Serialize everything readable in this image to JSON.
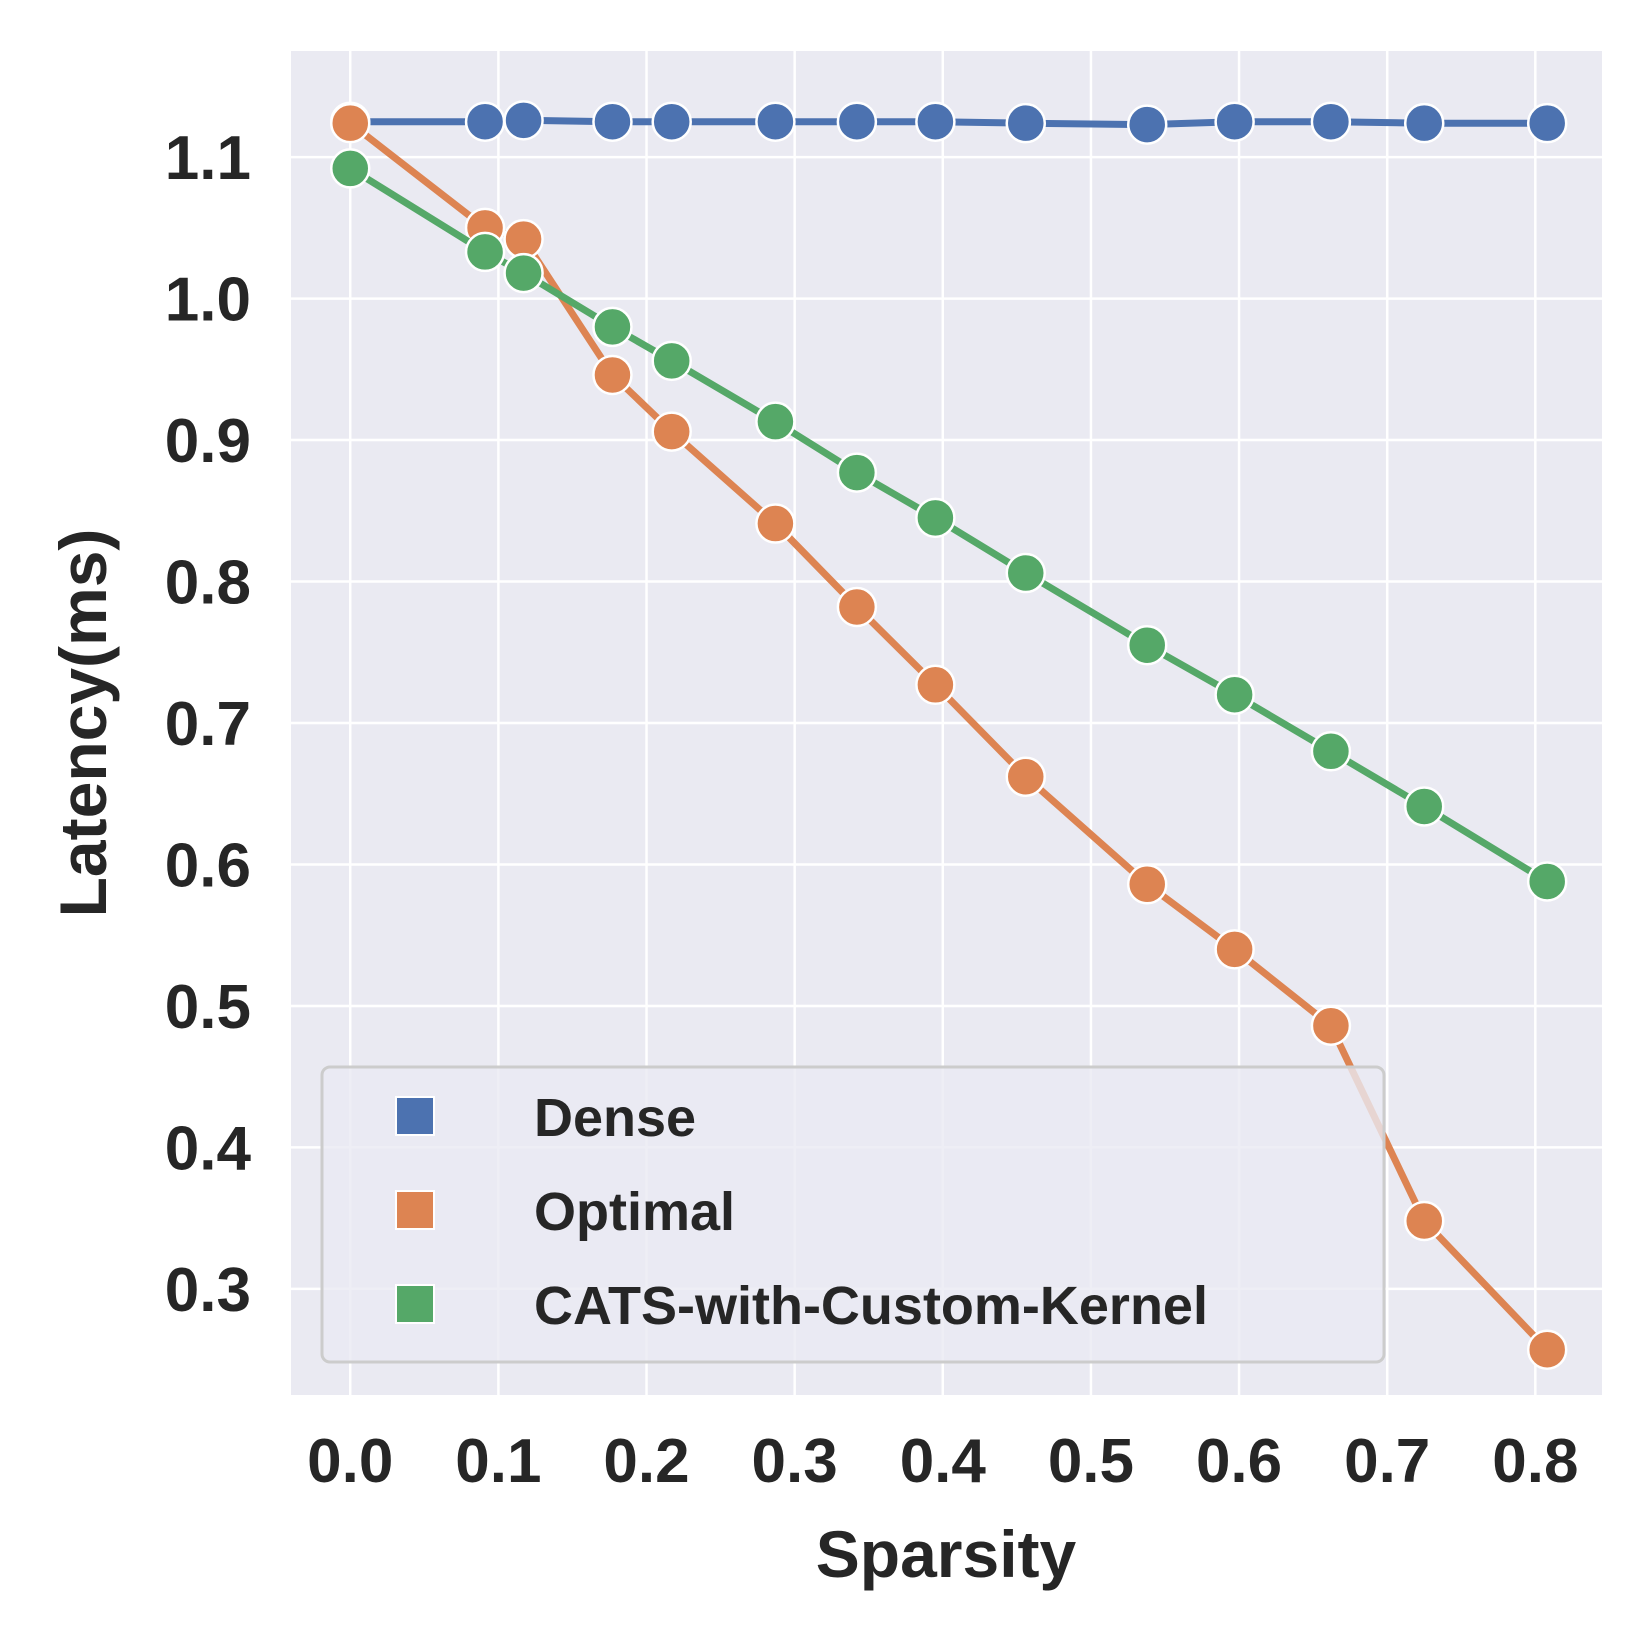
{
  "chart_data": {
    "type": "line",
    "title": "",
    "xlabel": "Sparsity",
    "ylabel": "Latency(ms)",
    "xlim": [
      -0.04,
      0.845
    ],
    "ylim": [
      0.225,
      1.175
    ],
    "xticks": [
      0.0,
      0.1,
      0.2,
      0.3,
      0.4,
      0.5,
      0.6,
      0.7,
      0.8
    ],
    "xtick_labels": [
      "0.0",
      "0.1",
      "0.2",
      "0.3",
      "0.4",
      "0.5",
      "0.6",
      "0.7",
      "0.8"
    ],
    "yticks": [
      0.3,
      0.4,
      0.5,
      0.6,
      0.7,
      0.8,
      0.9,
      1.0,
      1.1
    ],
    "ytick_labels": [
      "0.3",
      "0.4",
      "0.5",
      "0.6",
      "0.7",
      "0.8",
      "0.9",
      "1.0",
      "1.1"
    ],
    "grid": true,
    "legend_position": "lower-left",
    "background_color": "#eaeaf2",
    "grid_color": "#ffffff",
    "text_color": "#262626",
    "x": [
      0.0,
      0.091,
      0.117,
      0.177,
      0.217,
      0.287,
      0.342,
      0.395,
      0.456,
      0.538,
      0.597,
      0.662,
      0.725,
      0.808
    ],
    "series": [
      {
        "name": "Dense",
        "color": "#4c72b0",
        "values": [
          1.125,
          1.125,
          1.126,
          1.125,
          1.125,
          1.125,
          1.125,
          1.125,
          1.124,
          1.123,
          1.125,
          1.125,
          1.124,
          1.124
        ]
      },
      {
        "name": "Optimal",
        "color": "#dd8452",
        "values": [
          1.124,
          1.05,
          1.042,
          0.946,
          0.906,
          0.841,
          0.782,
          0.727,
          0.662,
          0.586,
          0.54,
          0.486,
          0.348,
          0.257
        ]
      },
      {
        "name": "CATS-with-Custom-Kernel",
        "color": "#55a868",
        "values": [
          1.092,
          1.033,
          1.018,
          0.98,
          0.956,
          0.913,
          0.877,
          0.845,
          0.806,
          0.755,
          0.72,
          0.68,
          0.641,
          0.588
        ]
      }
    ]
  }
}
